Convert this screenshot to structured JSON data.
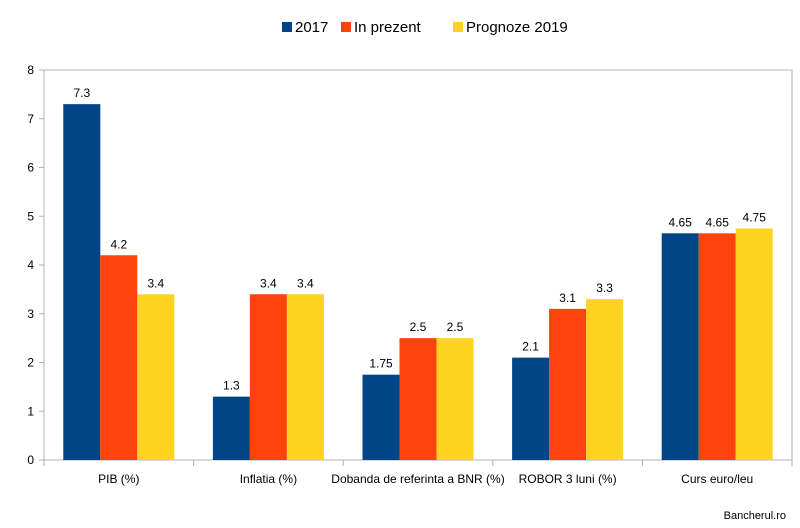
{
  "chart_data": {
    "type": "bar",
    "categories": [
      "PIB (%)",
      "Inflatia (%)",
      "Dobanda de referinta a BNR (%)",
      "ROBOR 3 luni (%)",
      "Curs euro/leu"
    ],
    "series": [
      {
        "name": "2017",
        "color": "#004586",
        "values": [
          7.3,
          1.3,
          1.75,
          2.1,
          4.65
        ],
        "labels": [
          "7.3",
          "1.3",
          "1.75",
          "2.1",
          "4.65"
        ]
      },
      {
        "name": "In prezent",
        "color": "#ff420e",
        "values": [
          4.2,
          3.4,
          2.5,
          3.1,
          4.65
        ],
        "labels": [
          "4.2",
          "3.4",
          "2.5",
          "3.1",
          "4.65"
        ]
      },
      {
        "name": "Prognoze 2019",
        "color": "#ffd320",
        "values": [
          3.4,
          3.4,
          2.5,
          3.3,
          4.75
        ],
        "labels": [
          "3.4",
          "3.4",
          "2.5",
          "3.3",
          "4.75"
        ]
      }
    ],
    "ylim": [
      0,
      8
    ],
    "yticks": [
      "0",
      "1",
      "2",
      "3",
      "4",
      "5",
      "6",
      "7",
      "8"
    ],
    "grid": false,
    "legend_position": "top"
  },
  "watermark": "Bancherul.ro"
}
